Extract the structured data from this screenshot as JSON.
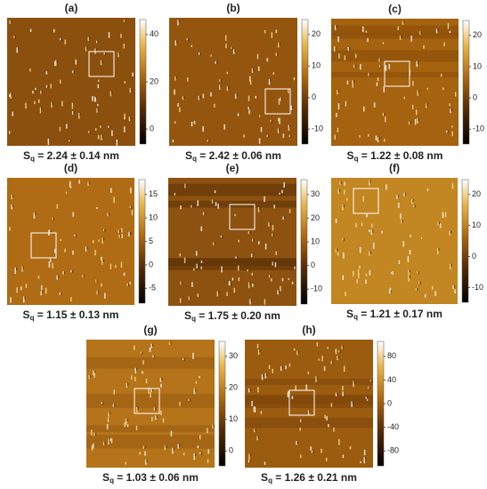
{
  "panels": [
    {
      "label": "(a)",
      "caption": {
        "symbol": "S",
        "subscript": "q",
        "text": " = 2.24 ± 0.14 nm"
      },
      "colorbar_ticks": [
        40,
        20,
        0
      ]
    },
    {
      "label": "(b)",
      "caption": {
        "symbol": "S",
        "subscript": "q",
        "text": " = 2.42 ± 0.06 nm"
      },
      "colorbar_ticks": [
        20,
        10,
        0,
        -10
      ]
    },
    {
      "label": "(c)",
      "caption": {
        "symbol": "S",
        "subscript": "q",
        "text": " = 1.22 ± 0.08 nm"
      },
      "colorbar_ticks": [
        20,
        10,
        0,
        -10
      ]
    },
    {
      "label": "(d)",
      "caption": {
        "symbol": "S",
        "subscript": "q",
        "text": " = 1.15 ± 0.13 nm"
      },
      "colorbar_ticks": [
        15,
        10,
        5,
        0,
        -5
      ]
    },
    {
      "label": "(e)",
      "caption": {
        "symbol": "S",
        "subscript": "q",
        "text": " = 1.75 ± 0.20 nm"
      },
      "colorbar_ticks": [
        30,
        20,
        10,
        0,
        -10
      ]
    },
    {
      "label": "(f)",
      "caption": {
        "symbol": "S",
        "subscript": "q",
        "text": " = 1.21 ± 0.17 nm"
      },
      "colorbar_ticks": [
        20,
        10,
        0,
        -10
      ]
    },
    {
      "label": "(g)",
      "caption": {
        "symbol": "S",
        "subscript": "q",
        "text": " = 1.03 ± 0.06 nm"
      },
      "colorbar_ticks": [
        30,
        20,
        10,
        0
      ]
    },
    {
      "label": "(h)",
      "caption": {
        "symbol": "S",
        "subscript": "q",
        "text": " = 1.26 ± 0.21 nm"
      },
      "colorbar_ticks": [
        80,
        40,
        0,
        -40,
        -80
      ]
    }
  ]
}
